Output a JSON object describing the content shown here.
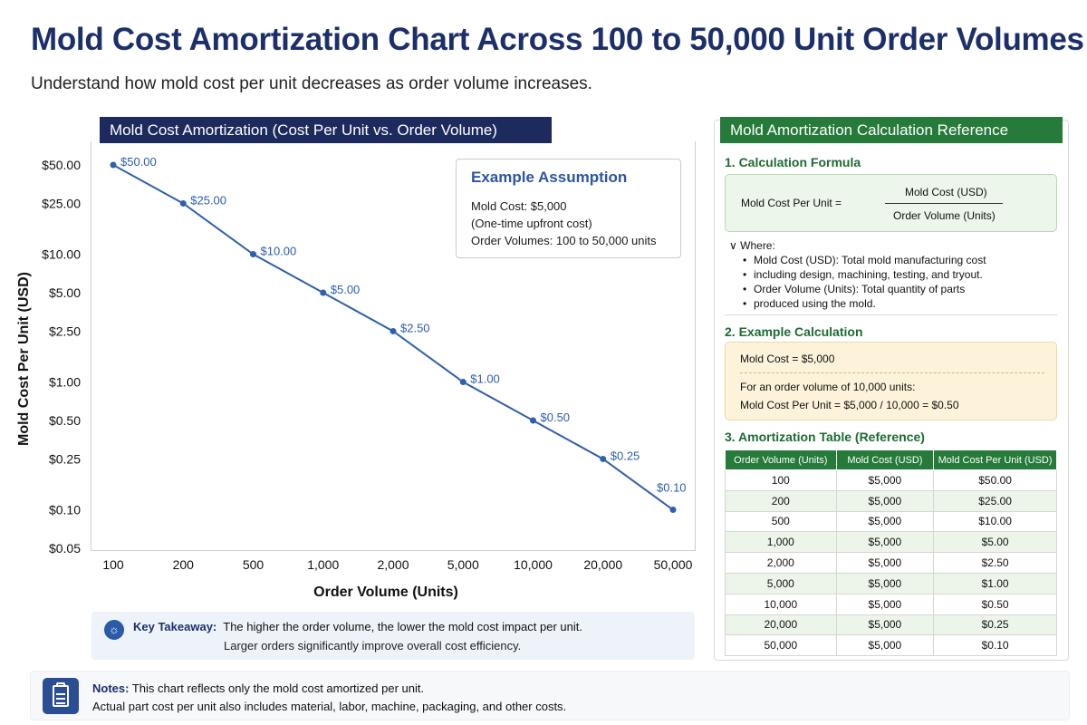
{
  "page": {
    "title": "Mold Cost Amortization Chart Across 100 to 50,000 Unit Order Volumes",
    "subtitle": "Understand how mold cost per unit decreases as order volume increases."
  },
  "chart_panel": {
    "header": "Mold Cost Amortization (Cost Per Unit vs. Order Volume)"
  },
  "assumption": {
    "title": "Example Assumption",
    "lines": [
      "Mold Cost: $5,000",
      "(One-time upfront cost)",
      "Order Volumes: 100 to 50,000 units"
    ]
  },
  "chart_data": {
    "type": "line",
    "title": "Mold Cost Amortization (Cost Per Unit vs. Order Volume)",
    "xlabel": "Order Volume (Units)",
    "ylabel": "Mold Cost Per Unit (USD)",
    "x_scale": "categorical",
    "y_scale": "log",
    "grid": false,
    "line_color": "#2f5fae",
    "categories": [
      "100",
      "200",
      "500",
      "1,000",
      "2,000",
      "5,000",
      "10,000",
      "20,000",
      "50,000"
    ],
    "y_ticks": [
      {
        "value": 50,
        "label": "$50.00"
      },
      {
        "value": 25,
        "label": "$25.00"
      },
      {
        "value": 10,
        "label": "$10.00"
      },
      {
        "value": 5,
        "label": "$5.00"
      },
      {
        "value": 2.5,
        "label": "$2.50"
      },
      {
        "value": 1,
        "label": "$1.00"
      },
      {
        "value": 0.5,
        "label": "$0.50"
      },
      {
        "value": 0.25,
        "label": "$0.25"
      },
      {
        "value": 0.1,
        "label": "$0.10"
      },
      {
        "value": 0.05,
        "label": "$0.05"
      }
    ],
    "series": [
      {
        "values": [
          50,
          25,
          10,
          5,
          2.5,
          1,
          0.5,
          0.25,
          0.1
        ],
        "labels": [
          "$50.00",
          "$25.00",
          "$10.00",
          "$5.00",
          "$2.50",
          "$1.00",
          "$0.50",
          "$0.25",
          "$0.10"
        ]
      }
    ]
  },
  "takeaway": {
    "label": "Key Takeaway:",
    "line1": "The higher the order volume, the lower the mold cost impact per unit.",
    "line2": "Larger orders significantly improve overall cost efficiency."
  },
  "notes": {
    "label": "Notes:",
    "line1": "This chart reflects only the mold cost amortized per unit.",
    "line2": "Actual part cost per unit also includes material, labor, machine, packaging, and other costs."
  },
  "reference": {
    "header": "Mold Amortization Calculation Reference",
    "formula": {
      "title": "1. Calculation Formula",
      "label": "Mold Cost Per Unit =",
      "numerator": "Mold Cost (USD)",
      "denominator": "Order Volume (Units)"
    },
    "where": "Where:",
    "bullets": [
      "Mold Cost (USD): Total mold manufacturing cost",
      "including design, machining, testing, and tryout.",
      "Order Volume (Units): Total quantity of parts",
      "produced using the mold."
    ],
    "example": {
      "title": "2. Example Calculation",
      "line1": "Mold Cost = $5,000",
      "line2": "For an order volume of 10,000 units:",
      "line3": "Mold Cost Per Unit = $5,000 / 10,000 = $0.50"
    },
    "table": {
      "title": "3. Amortization Table (Reference)",
      "headers": [
        "Order Volume (Units)",
        "Mold Cost (USD)",
        "Mold Cost Per Unit (USD)"
      ],
      "rows": [
        [
          "100",
          "$5,000",
          "$50.00"
        ],
        [
          "200",
          "$5,000",
          "$25.00"
        ],
        [
          "500",
          "$5,000",
          "$10.00"
        ],
        [
          "1,000",
          "$5,000",
          "$5.00"
        ],
        [
          "2,000",
          "$5,000",
          "$2.50"
        ],
        [
          "5,000",
          "$5,000",
          "$1.00"
        ],
        [
          "10,000",
          "$5,000",
          "$0.50"
        ],
        [
          "20,000",
          "$5,000",
          "$0.25"
        ],
        [
          "50,000",
          "$5,000",
          "$0.10"
        ]
      ]
    }
  }
}
